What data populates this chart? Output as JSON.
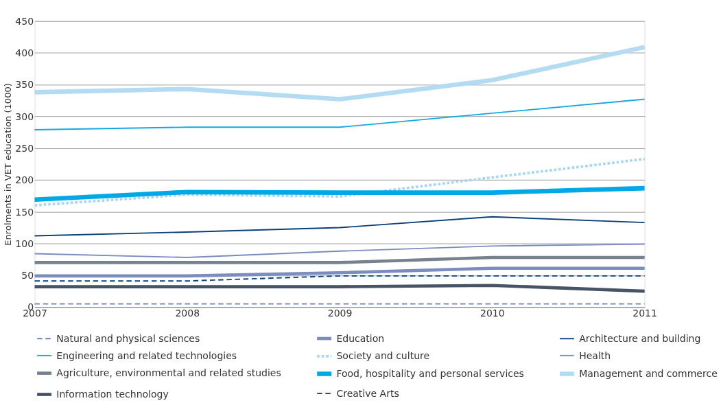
{
  "chart_data": {
    "type": "line",
    "ylabel": "Enrolments in VET education (1000)",
    "categories": [
      "2007",
      "2008",
      "2009",
      "2010",
      "2011"
    ],
    "ylim": [
      0,
      450
    ],
    "yticks": [
      0,
      50,
      100,
      150,
      200,
      250,
      300,
      350,
      400,
      450
    ],
    "grid": "y",
    "legend": "bottom",
    "series": [
      {
        "name": "Natural and physical sciences",
        "color": "#7080b8",
        "line_style": "dashed",
        "values": [
          5,
          5,
          5,
          5,
          5
        ]
      },
      {
        "name": "Education",
        "color": "#7a8cc0",
        "line_style": "solid",
        "values": [
          49,
          49,
          54,
          61,
          61
        ]
      },
      {
        "name": "Architecture and building",
        "color": "#0a3f7a",
        "line_style": "solid",
        "values": [
          112,
          118,
          125,
          142,
          133
        ]
      },
      {
        "name": "Engineering and related technologies",
        "color": "#12a8e0",
        "line_style": "solid",
        "values": [
          279,
          283,
          283,
          305,
          327
        ]
      },
      {
        "name": "Society and culture",
        "color": "#a9d6f0",
        "line_style": "dotted",
        "values": [
          160,
          177,
          174,
          204,
          233
        ]
      },
      {
        "name": "Health",
        "color": "#7b8bbf",
        "line_style": "solid",
        "values": [
          84,
          78,
          88,
          96,
          99
        ]
      },
      {
        "name": "Agriculture, environmental and related studies",
        "color": "#77828f",
        "line_style": "solid",
        "values": [
          70,
          70,
          70,
          78,
          78
        ]
      },
      {
        "name": "Food, hospitality and personal services",
        "color": "#00a9e6",
        "line_style": "solid",
        "values": [
          169,
          181,
          180,
          180,
          187
        ]
      },
      {
        "name": "Management and commerce",
        "color": "#b3dcf3",
        "line_style": "solid",
        "values": [
          338,
          343,
          327,
          357,
          409
        ]
      },
      {
        "name": "Information technology",
        "color": "#465466",
        "line_style": "solid",
        "values": [
          32,
          32,
          32,
          34,
          25
        ]
      },
      {
        "name": "Creative Arts",
        "color": "#0a3f7a",
        "line_style": "dashed",
        "values": [
          41,
          41,
          49,
          49,
          49
        ]
      }
    ]
  }
}
